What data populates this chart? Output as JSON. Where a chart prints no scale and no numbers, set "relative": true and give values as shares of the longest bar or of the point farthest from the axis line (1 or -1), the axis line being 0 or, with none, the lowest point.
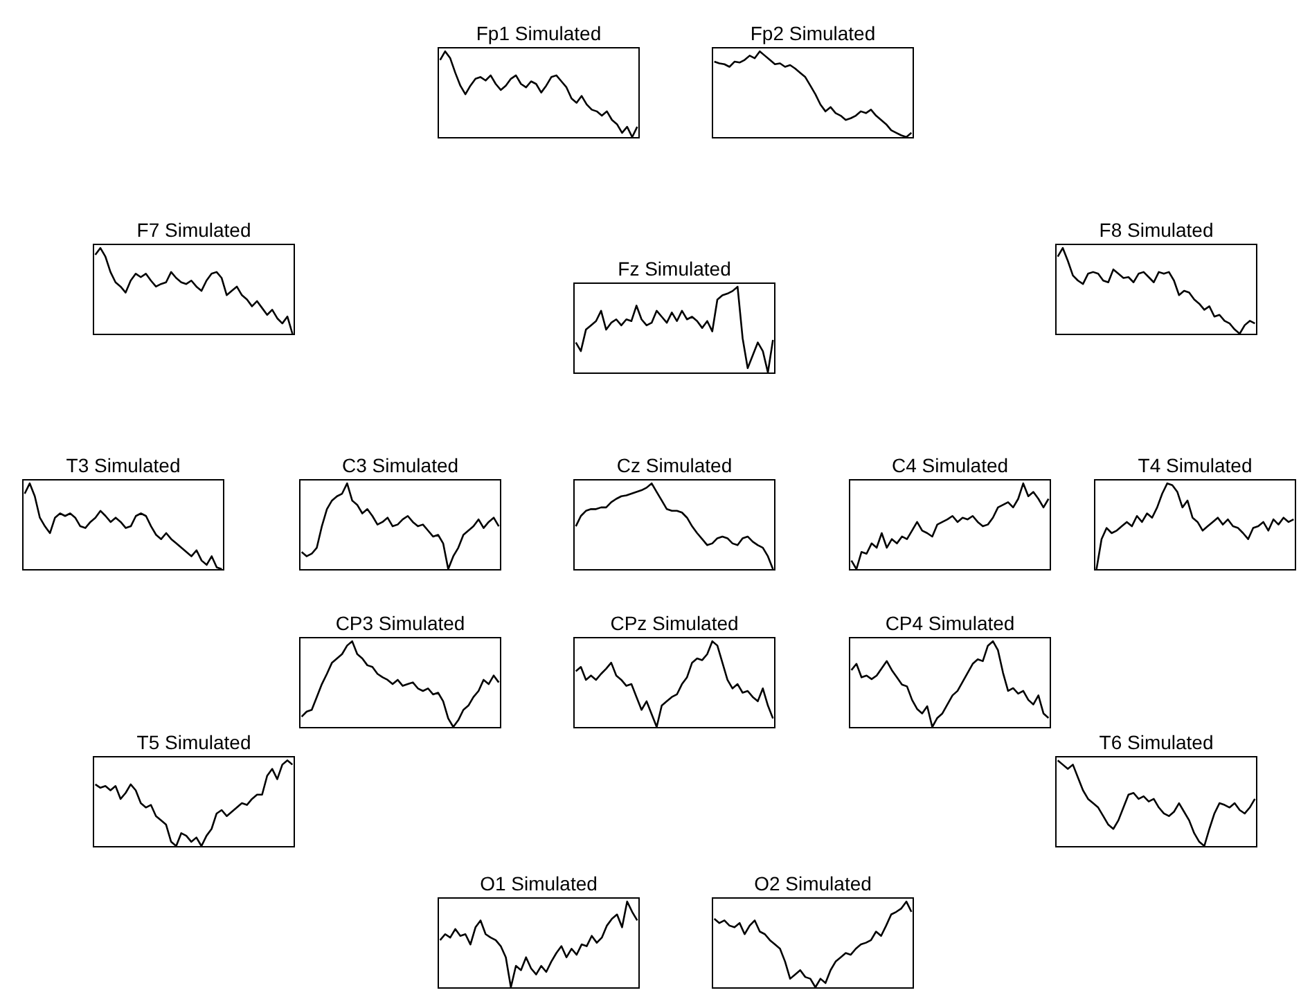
{
  "chart_data": [
    {
      "type": "line",
      "title": "Fp1 Simulated",
      "relative": true,
      "color": "#000000",
      "categories": [
        null,
        null,
        null,
        null,
        null,
        null,
        null,
        null,
        null,
        null,
        null,
        null,
        null,
        null,
        null,
        null,
        null,
        null,
        null,
        null,
        null,
        null,
        null,
        null,
        null,
        null,
        null,
        null,
        null,
        null,
        null,
        null,
        null,
        null,
        null,
        null,
        null,
        null,
        null,
        null
      ],
      "values": [
        0.9,
        1.0,
        0.92,
        0.75,
        0.6,
        0.5,
        0.6,
        0.68,
        0.7,
        0.66,
        0.72,
        0.62,
        0.55,
        0.6,
        0.68,
        0.72,
        0.62,
        0.58,
        0.65,
        0.62,
        0.52,
        0.6,
        0.7,
        0.72,
        0.65,
        0.58,
        0.45,
        0.4,
        0.48,
        0.38,
        0.32,
        0.3,
        0.25,
        0.3,
        0.2,
        0.15,
        0.05,
        0.12,
        0.0,
        0.12
      ]
    },
    {
      "type": "line",
      "title": "Fp2 Simulated",
      "relative": true,
      "color": "#000000",
      "categories": [
        null,
        null,
        null,
        null,
        null,
        null,
        null,
        null,
        null,
        null,
        null,
        null,
        null,
        null,
        null,
        null,
        null,
        null,
        null,
        null,
        null,
        null,
        null,
        null,
        null,
        null,
        null,
        null,
        null,
        null,
        null,
        null,
        null,
        null,
        null,
        null,
        null,
        null,
        null,
        null
      ],
      "values": [
        0.88,
        0.86,
        0.85,
        0.82,
        0.88,
        0.87,
        0.9,
        0.95,
        0.92,
        1.0,
        0.95,
        0.9,
        0.85,
        0.86,
        0.82,
        0.84,
        0.8,
        0.75,
        0.7,
        0.6,
        0.5,
        0.38,
        0.3,
        0.35,
        0.28,
        0.25,
        0.2,
        0.22,
        0.25,
        0.3,
        0.28,
        0.32,
        0.25,
        0.2,
        0.15,
        0.08,
        0.05,
        0.02,
        0.0,
        0.05
      ]
    },
    {
      "type": "line",
      "title": "F7 Simulated",
      "relative": true,
      "color": "#000000",
      "categories": [
        null,
        null,
        null,
        null,
        null,
        null,
        null,
        null,
        null,
        null,
        null,
        null,
        null,
        null,
        null,
        null,
        null,
        null,
        null,
        null,
        null,
        null,
        null,
        null,
        null,
        null,
        null,
        null,
        null,
        null,
        null,
        null,
        null,
        null,
        null,
        null,
        null,
        null,
        null,
        null
      ],
      "values": [
        0.92,
        1.0,
        0.9,
        0.72,
        0.6,
        0.55,
        0.48,
        0.62,
        0.7,
        0.66,
        0.7,
        0.62,
        0.55,
        0.58,
        0.6,
        0.72,
        0.65,
        0.6,
        0.58,
        0.62,
        0.55,
        0.5,
        0.62,
        0.7,
        0.72,
        0.65,
        0.45,
        0.5,
        0.55,
        0.45,
        0.4,
        0.32,
        0.38,
        0.3,
        0.22,
        0.28,
        0.18,
        0.12,
        0.2,
        0.0
      ]
    },
    {
      "type": "line",
      "title": "Fz Simulated",
      "relative": true,
      "color": "#000000",
      "categories": [
        null,
        null,
        null,
        null,
        null,
        null,
        null,
        null,
        null,
        null,
        null,
        null,
        null,
        null,
        null,
        null,
        null,
        null,
        null,
        null,
        null,
        null,
        null,
        null,
        null,
        null,
        null,
        null,
        null,
        null,
        null,
        null,
        null,
        null,
        null,
        null,
        null,
        null,
        null,
        null
      ],
      "values": [
        0.35,
        0.25,
        0.5,
        0.55,
        0.6,
        0.72,
        0.5,
        0.58,
        0.62,
        0.55,
        0.62,
        0.6,
        0.78,
        0.62,
        0.55,
        0.58,
        0.72,
        0.65,
        0.58,
        0.7,
        0.6,
        0.72,
        0.62,
        0.65,
        0.6,
        0.52,
        0.6,
        0.48,
        0.85,
        0.9,
        0.92,
        0.95,
        1.0,
        0.4,
        0.05,
        0.2,
        0.35,
        0.25,
        0.0,
        0.38
      ]
    },
    {
      "type": "line",
      "title": "F8 Simulated",
      "relative": true,
      "color": "#000000",
      "categories": [
        null,
        null,
        null,
        null,
        null,
        null,
        null,
        null,
        null,
        null,
        null,
        null,
        null,
        null,
        null,
        null,
        null,
        null,
        null,
        null,
        null,
        null,
        null,
        null,
        null,
        null,
        null,
        null,
        null,
        null,
        null,
        null,
        null,
        null,
        null,
        null,
        null,
        null,
        null,
        null
      ],
      "values": [
        0.9,
        1.0,
        0.85,
        0.68,
        0.62,
        0.58,
        0.7,
        0.72,
        0.7,
        0.62,
        0.6,
        0.75,
        0.7,
        0.65,
        0.66,
        0.6,
        0.7,
        0.72,
        0.66,
        0.6,
        0.72,
        0.7,
        0.72,
        0.62,
        0.45,
        0.5,
        0.48,
        0.4,
        0.35,
        0.28,
        0.32,
        0.2,
        0.22,
        0.15,
        0.12,
        0.05,
        0.0,
        0.1,
        0.15,
        0.12
      ]
    },
    {
      "type": "line",
      "title": "T3 Simulated",
      "relative": true,
      "color": "#000000",
      "categories": [
        null,
        null,
        null,
        null,
        null,
        null,
        null,
        null,
        null,
        null,
        null,
        null,
        null,
        null,
        null,
        null,
        null,
        null,
        null,
        null,
        null,
        null,
        null,
        null,
        null,
        null,
        null,
        null,
        null,
        null,
        null,
        null,
        null,
        null,
        null,
        null,
        null,
        null,
        null,
        null
      ],
      "values": [
        0.88,
        1.0,
        0.85,
        0.6,
        0.5,
        0.42,
        0.6,
        0.65,
        0.62,
        0.65,
        0.6,
        0.5,
        0.48,
        0.55,
        0.6,
        0.68,
        0.62,
        0.55,
        0.6,
        0.55,
        0.48,
        0.5,
        0.62,
        0.65,
        0.62,
        0.5,
        0.4,
        0.35,
        0.42,
        0.35,
        0.3,
        0.25,
        0.2,
        0.15,
        0.22,
        0.1,
        0.05,
        0.15,
        0.02,
        0.0
      ]
    },
    {
      "type": "line",
      "title": "C3 Simulated",
      "relative": true,
      "color": "#000000",
      "categories": [
        null,
        null,
        null,
        null,
        null,
        null,
        null,
        null,
        null,
        null,
        null,
        null,
        null,
        null,
        null,
        null,
        null,
        null,
        null,
        null,
        null,
        null,
        null,
        null,
        null,
        null,
        null,
        null,
        null,
        null,
        null,
        null,
        null,
        null,
        null,
        null,
        null,
        null,
        null,
        null
      ],
      "values": [
        0.2,
        0.15,
        0.18,
        0.25,
        0.5,
        0.7,
        0.8,
        0.85,
        0.88,
        1.0,
        0.8,
        0.75,
        0.65,
        0.7,
        0.62,
        0.52,
        0.55,
        0.6,
        0.5,
        0.52,
        0.58,
        0.62,
        0.55,
        0.5,
        0.52,
        0.45,
        0.38,
        0.4,
        0.3,
        0.0,
        0.15,
        0.25,
        0.4,
        0.45,
        0.5,
        0.58,
        0.48,
        0.55,
        0.6,
        0.5
      ]
    },
    {
      "type": "line",
      "title": "Cz Simulated",
      "relative": true,
      "color": "#000000",
      "categories": [
        null,
        null,
        null,
        null,
        null,
        null,
        null,
        null,
        null,
        null,
        null,
        null,
        null,
        null,
        null,
        null,
        null,
        null,
        null,
        null,
        null,
        null,
        null,
        null,
        null,
        null,
        null,
        null,
        null,
        null,
        null,
        null,
        null,
        null,
        null,
        null,
        null,
        null,
        null,
        null
      ],
      "values": [
        0.5,
        0.62,
        0.68,
        0.7,
        0.7,
        0.72,
        0.72,
        0.78,
        0.82,
        0.85,
        0.86,
        0.88,
        0.9,
        0.92,
        0.95,
        1.0,
        0.9,
        0.8,
        0.7,
        0.68,
        0.68,
        0.66,
        0.6,
        0.5,
        0.42,
        0.35,
        0.28,
        0.3,
        0.36,
        0.38,
        0.36,
        0.3,
        0.28,
        0.36,
        0.38,
        0.32,
        0.28,
        0.25,
        0.15,
        0.0
      ]
    },
    {
      "type": "line",
      "title": "C4 Simulated",
      "relative": true,
      "color": "#000000",
      "categories": [
        null,
        null,
        null,
        null,
        null,
        null,
        null,
        null,
        null,
        null,
        null,
        null,
        null,
        null,
        null,
        null,
        null,
        null,
        null,
        null,
        null,
        null,
        null,
        null,
        null,
        null,
        null,
        null,
        null,
        null,
        null,
        null,
        null,
        null,
        null,
        null,
        null,
        null,
        null,
        null
      ],
      "values": [
        0.1,
        0.0,
        0.2,
        0.18,
        0.3,
        0.25,
        0.42,
        0.25,
        0.35,
        0.3,
        0.38,
        0.35,
        0.45,
        0.55,
        0.45,
        0.42,
        0.38,
        0.52,
        0.55,
        0.58,
        0.62,
        0.55,
        0.6,
        0.58,
        0.62,
        0.55,
        0.5,
        0.52,
        0.6,
        0.72,
        0.75,
        0.78,
        0.72,
        0.82,
        1.0,
        0.85,
        0.9,
        0.82,
        0.72,
        0.82
      ]
    },
    {
      "type": "line",
      "title": "T4 Simulated",
      "relative": true,
      "color": "#000000",
      "categories": [
        null,
        null,
        null,
        null,
        null,
        null,
        null,
        null,
        null,
        null,
        null,
        null,
        null,
        null,
        null,
        null,
        null,
        null,
        null,
        null,
        null,
        null,
        null,
        null,
        null,
        null,
        null,
        null,
        null,
        null,
        null,
        null,
        null,
        null,
        null,
        null,
        null,
        null,
        null,
        null
      ],
      "values": [
        0.0,
        0.35,
        0.48,
        0.42,
        0.45,
        0.5,
        0.55,
        0.5,
        0.62,
        0.55,
        0.65,
        0.6,
        0.72,
        0.88,
        1.0,
        0.98,
        0.9,
        0.72,
        0.8,
        0.6,
        0.55,
        0.45,
        0.5,
        0.55,
        0.6,
        0.52,
        0.58,
        0.5,
        0.48,
        0.42,
        0.35,
        0.48,
        0.5,
        0.55,
        0.45,
        0.58,
        0.52,
        0.6,
        0.55,
        0.58
      ]
    },
    {
      "type": "line",
      "title": "CP3 Simulated",
      "relative": true,
      "color": "#000000",
      "categories": [
        null,
        null,
        null,
        null,
        null,
        null,
        null,
        null,
        null,
        null,
        null,
        null,
        null,
        null,
        null,
        null,
        null,
        null,
        null,
        null,
        null,
        null,
        null,
        null,
        null,
        null,
        null,
        null,
        null,
        null,
        null,
        null,
        null,
        null,
        null,
        null,
        null,
        null,
        null,
        null
      ],
      "values": [
        0.12,
        0.18,
        0.2,
        0.35,
        0.5,
        0.62,
        0.75,
        0.8,
        0.85,
        0.95,
        1.0,
        0.85,
        0.8,
        0.72,
        0.7,
        0.62,
        0.58,
        0.55,
        0.5,
        0.55,
        0.48,
        0.5,
        0.52,
        0.45,
        0.42,
        0.45,
        0.38,
        0.4,
        0.3,
        0.1,
        0.0,
        0.08,
        0.2,
        0.25,
        0.35,
        0.42,
        0.55,
        0.5,
        0.6,
        0.52
      ]
    },
    {
      "type": "line",
      "title": "CPz Simulated",
      "relative": true,
      "color": "#000000",
      "categories": [
        null,
        null,
        null,
        null,
        null,
        null,
        null,
        null,
        null,
        null,
        null,
        null,
        null,
        null,
        null,
        null,
        null,
        null,
        null,
        null,
        null,
        null,
        null,
        null,
        null,
        null,
        null,
        null,
        null,
        null,
        null,
        null,
        null,
        null,
        null,
        null,
        null,
        null,
        null,
        null
      ],
      "values": [
        0.65,
        0.7,
        0.55,
        0.6,
        0.55,
        0.62,
        0.68,
        0.75,
        0.6,
        0.55,
        0.48,
        0.5,
        0.35,
        0.2,
        0.3,
        0.15,
        0.0,
        0.25,
        0.3,
        0.35,
        0.38,
        0.5,
        0.58,
        0.75,
        0.8,
        0.78,
        0.85,
        1.0,
        0.95,
        0.75,
        0.55,
        0.45,
        0.5,
        0.4,
        0.42,
        0.35,
        0.3,
        0.45,
        0.25,
        0.1
      ]
    },
    {
      "type": "line",
      "title": "CP4 Simulated",
      "relative": true,
      "color": "#000000",
      "categories": [
        null,
        null,
        null,
        null,
        null,
        null,
        null,
        null,
        null,
        null,
        null,
        null,
        null,
        null,
        null,
        null,
        null,
        null,
        null,
        null,
        null,
        null,
        null,
        null,
        null,
        null,
        null,
        null,
        null,
        null,
        null,
        null,
        null,
        null,
        null,
        null,
        null,
        null,
        null,
        null
      ],
      "values": [
        0.68,
        0.75,
        0.6,
        0.62,
        0.58,
        0.62,
        0.7,
        0.78,
        0.68,
        0.6,
        0.52,
        0.5,
        0.35,
        0.25,
        0.2,
        0.28,
        0.05,
        0.15,
        0.2,
        0.3,
        0.4,
        0.45,
        0.55,
        0.65,
        0.75,
        0.8,
        0.78,
        0.95,
        1.0,
        0.9,
        0.65,
        0.45,
        0.48,
        0.42,
        0.45,
        0.35,
        0.3,
        0.4,
        0.2,
        0.15
      ]
    },
    {
      "type": "line",
      "title": "T5 Simulated",
      "relative": true,
      "color": "#000000",
      "categories": [
        null,
        null,
        null,
        null,
        null,
        null,
        null,
        null,
        null,
        null,
        null,
        null,
        null,
        null,
        null,
        null,
        null,
        null,
        null,
        null,
        null,
        null,
        null,
        null,
        null,
        null,
        null,
        null,
        null,
        null,
        null,
        null,
        null,
        null,
        null,
        null,
        null,
        null,
        null,
        null
      ],
      "values": [
        0.72,
        0.68,
        0.7,
        0.65,
        0.7,
        0.55,
        0.62,
        0.72,
        0.65,
        0.5,
        0.45,
        0.48,
        0.35,
        0.3,
        0.25,
        0.05,
        0.0,
        0.15,
        0.12,
        0.05,
        0.1,
        0.0,
        0.12,
        0.2,
        0.38,
        0.42,
        0.35,
        0.4,
        0.45,
        0.5,
        0.48,
        0.55,
        0.6,
        0.6,
        0.82,
        0.9,
        0.78,
        0.95,
        1.0,
        0.95
      ]
    },
    {
      "type": "line",
      "title": "T6 Simulated",
      "relative": true,
      "color": "#000000",
      "categories": [
        null,
        null,
        null,
        null,
        null,
        null,
        null,
        null,
        null,
        null,
        null,
        null,
        null,
        null,
        null,
        null,
        null,
        null,
        null,
        null,
        null,
        null,
        null,
        null,
        null,
        null,
        null,
        null,
        null,
        null,
        null,
        null,
        null,
        null,
        null,
        null,
        null,
        null,
        null,
        null
      ],
      "values": [
        1.0,
        0.95,
        0.9,
        0.95,
        0.8,
        0.65,
        0.55,
        0.5,
        0.45,
        0.35,
        0.25,
        0.2,
        0.3,
        0.45,
        0.6,
        0.62,
        0.55,
        0.58,
        0.52,
        0.55,
        0.45,
        0.38,
        0.35,
        0.4,
        0.5,
        0.4,
        0.3,
        0.15,
        0.05,
        0.0,
        0.2,
        0.38,
        0.5,
        0.48,
        0.45,
        0.5,
        0.42,
        0.38,
        0.45,
        0.55
      ]
    },
    {
      "type": "line",
      "title": "O1 Simulated",
      "relative": true,
      "color": "#000000",
      "categories": [
        null,
        null,
        null,
        null,
        null,
        null,
        null,
        null,
        null,
        null,
        null,
        null,
        null,
        null,
        null,
        null,
        null,
        null,
        null,
        null,
        null,
        null,
        null,
        null,
        null,
        null,
        null,
        null,
        null,
        null,
        null,
        null,
        null,
        null,
        null,
        null,
        null,
        null,
        null,
        null
      ],
      "values": [
        0.55,
        0.62,
        0.58,
        0.68,
        0.6,
        0.62,
        0.5,
        0.7,
        0.78,
        0.62,
        0.58,
        0.55,
        0.48,
        0.35,
        0.0,
        0.25,
        0.2,
        0.35,
        0.22,
        0.15,
        0.25,
        0.18,
        0.3,
        0.4,
        0.48,
        0.35,
        0.45,
        0.38,
        0.5,
        0.48,
        0.6,
        0.52,
        0.58,
        0.72,
        0.8,
        0.85,
        0.7,
        1.0,
        0.88,
        0.78
      ]
    },
    {
      "type": "line",
      "title": "O2 Simulated",
      "relative": true,
      "color": "#000000",
      "categories": [
        null,
        null,
        null,
        null,
        null,
        null,
        null,
        null,
        null,
        null,
        null,
        null,
        null,
        null,
        null,
        null,
        null,
        null,
        null,
        null,
        null,
        null,
        null,
        null,
        null,
        null,
        null,
        null,
        null,
        null,
        null,
        null,
        null,
        null,
        null,
        null,
        null,
        null,
        null,
        null
      ],
      "values": [
        0.8,
        0.75,
        0.78,
        0.72,
        0.7,
        0.75,
        0.62,
        0.72,
        0.78,
        0.65,
        0.62,
        0.55,
        0.5,
        0.45,
        0.3,
        0.1,
        0.15,
        0.2,
        0.12,
        0.1,
        0.0,
        0.1,
        0.05,
        0.2,
        0.3,
        0.35,
        0.4,
        0.38,
        0.45,
        0.5,
        0.52,
        0.55,
        0.65,
        0.6,
        0.72,
        0.85,
        0.88,
        0.92,
        1.0,
        0.88
      ]
    }
  ]
}
